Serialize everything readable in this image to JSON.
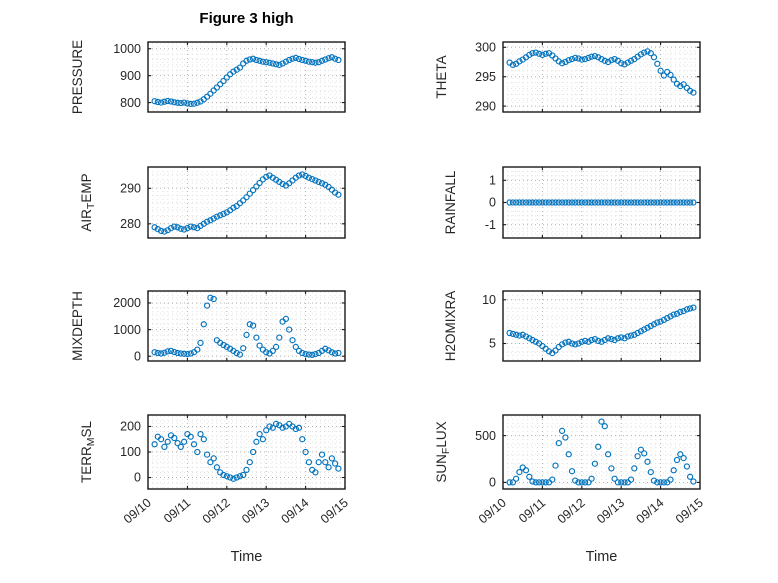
{
  "colors": {
    "marker": "#0072bd",
    "axis": "#1a1a1a",
    "grid": "#b0b0b0",
    "minor_grid": "#dfdfdf",
    "text": "#262626"
  },
  "chart_data": {
    "type": "scatter",
    "title": "Figure 3 high",
    "xlabel": "Time",
    "marker": "open-circle",
    "grid": "dotted major+minor",
    "legend": "none",
    "xlim": [
      0,
      5
    ],
    "x_ticks": [
      0,
      1,
      2,
      3,
      4,
      5
    ],
    "x_tick_labels": [
      "09/10",
      "09/11",
      "09/12",
      "09/13",
      "09/14",
      "09/15"
    ],
    "x": [
      0.167,
      0.25,
      0.333,
      0.417,
      0.5,
      0.583,
      0.667,
      0.75,
      0.833,
      0.917,
      1,
      1.083,
      1.167,
      1.25,
      1.333,
      1.417,
      1.5,
      1.583,
      1.667,
      1.75,
      1.833,
      1.917,
      2,
      2.083,
      2.167,
      2.25,
      2.333,
      2.417,
      2.5,
      2.583,
      2.667,
      2.75,
      2.833,
      2.917,
      3,
      3.083,
      3.167,
      3.25,
      3.333,
      3.417,
      3.5,
      3.583,
      3.667,
      3.75,
      3.833,
      3.917,
      4,
      4.083,
      4.167,
      4.25,
      4.333,
      4.417,
      4.5,
      4.583,
      4.667,
      4.75,
      4.833
    ],
    "panels": [
      {
        "name": "PRESSURE",
        "slug": "pressure",
        "row": 0,
        "col": 0,
        "label": [
          {
            "t": "PRESSURE"
          }
        ],
        "ylim": [
          765,
          1025
        ],
        "yticks": [
          800,
          900,
          1000
        ],
        "values": [
          805,
          802,
          800,
          803,
          806,
          804,
          801,
          799,
          798,
          800,
          797,
          795,
          796,
          799,
          804,
          812,
          822,
          833,
          845,
          856,
          868,
          880,
          893,
          905,
          915,
          922,
          930,
          945,
          955,
          960,
          963,
          958,
          955,
          952,
          950,
          948,
          945,
          942,
          940,
          945,
          952,
          958,
          963,
          966,
          962,
          958,
          955,
          952,
          950,
          948,
          950,
          955,
          960,
          965,
          968,
          963,
          958
        ]
      },
      {
        "name": "THETA",
        "slug": "theta",
        "row": 0,
        "col": 1,
        "label": [
          {
            "t": "THETA"
          }
        ],
        "ylim": [
          289,
          300.9
        ],
        "yticks": [
          290,
          295,
          300
        ],
        "values": [
          297.4,
          297,
          297.2,
          297.6,
          297.9,
          298.3,
          298.7,
          299,
          299.1,
          298.9,
          298.7,
          298.9,
          299,
          298.6,
          298.1,
          297.6,
          297.3,
          297.5,
          297.8,
          298,
          298.2,
          298.1,
          297.9,
          298,
          298.2,
          298.4,
          298.5,
          298.3,
          298,
          297.7,
          297.5,
          297.8,
          298,
          297.7,
          297.3,
          297.1,
          297.4,
          297.7,
          298,
          298.4,
          298.8,
          299.1,
          299.3,
          299,
          298.3,
          297.2,
          296,
          295.2,
          295.8,
          295.3,
          294.5,
          293.8,
          293.4,
          293.7,
          293.1,
          292.6,
          292.3
        ]
      },
      {
        "name": "AIR_TEMP",
        "slug": "air-temp",
        "row": 1,
        "col": 0,
        "label": [
          {
            "t": "AIR"
          },
          {
            "t": "T",
            "sub": true
          },
          {
            "t": "EMP"
          }
        ],
        "ylim": [
          276,
          296
        ],
        "yticks": [
          280,
          290
        ],
        "values": [
          279,
          278.5,
          278,
          277.8,
          278.2,
          278.8,
          279.2,
          279,
          278.6,
          278.4,
          278.8,
          279.2,
          279,
          278.8,
          279.4,
          280,
          280.6,
          281,
          281.5,
          282,
          282.4,
          282.8,
          283.2,
          283.8,
          284.5,
          285,
          285.8,
          286.6,
          287.5,
          288.5,
          289.5,
          290.5,
          291.5,
          292.5,
          293.2,
          293.6,
          293,
          292.4,
          291.8,
          291.2,
          290.8,
          291.4,
          292.2,
          293,
          293.6,
          293.9,
          293.5,
          293,
          292.6,
          292.2,
          291.8,
          291.4,
          291,
          290.4,
          289.6,
          288.8,
          288.2
        ]
      },
      {
        "name": "RAINFALL",
        "slug": "rainfall",
        "row": 1,
        "col": 1,
        "label": [
          {
            "t": "RAINFALL"
          }
        ],
        "ylim": [
          -1.6,
          1.6
        ],
        "yticks": [
          -1,
          0,
          1
        ],
        "values": [
          0,
          0,
          0,
          0,
          0,
          0,
          0,
          0,
          0,
          0,
          0,
          0,
          0,
          0,
          0,
          0,
          0,
          0,
          0,
          0,
          0,
          0,
          0,
          0,
          0,
          0,
          0,
          0,
          0,
          0,
          0,
          0,
          0,
          0,
          0,
          0,
          0,
          0,
          0,
          0,
          0,
          0,
          0,
          0,
          0,
          0,
          0,
          0,
          0,
          0,
          0,
          0,
          0,
          0,
          0,
          0,
          0
        ]
      },
      {
        "name": "MIXDEPTH",
        "slug": "mixdepth",
        "row": 2,
        "col": 0,
        "label": [
          {
            "t": "MIXDEPTH"
          }
        ],
        "ylim": [
          -180,
          2450
        ],
        "yticks": [
          0,
          1000,
          2000
        ],
        "values": [
          150,
          120,
          100,
          130,
          180,
          200,
          160,
          120,
          100,
          90,
          80,
          100,
          150,
          250,
          500,
          1200,
          1900,
          2200,
          2150,
          600,
          500,
          420,
          350,
          280,
          200,
          120,
          60,
          300,
          800,
          1200,
          1150,
          700,
          400,
          250,
          150,
          100,
          200,
          350,
          700,
          1300,
          1400,
          1000,
          600,
          350,
          200,
          120,
          80,
          60,
          50,
          80,
          120,
          200,
          280,
          220,
          150,
          100,
          120
        ]
      },
      {
        "name": "H2OMIXRA",
        "slug": "h2omixra",
        "row": 2,
        "col": 1,
        "label": [
          {
            "t": "H2OMIXRA"
          }
        ],
        "ylim": [
          3,
          11
        ],
        "yticks": [
          5,
          10
        ],
        "values": [
          6.2,
          6.1,
          6,
          5.9,
          6,
          5.8,
          5.6,
          5.4,
          5.2,
          5,
          4.7,
          4.4,
          4.1,
          3.9,
          4.2,
          4.6,
          4.9,
          5.1,
          5.2,
          5,
          4.9,
          5,
          5.2,
          5.3,
          5.2,
          5.4,
          5.5,
          5.3,
          5.2,
          5.4,
          5.6,
          5.5,
          5.4,
          5.6,
          5.7,
          5.6,
          5.8,
          5.9,
          6,
          6.2,
          6.4,
          6.6,
          6.8,
          7,
          7.2,
          7.4,
          7.5,
          7.7,
          7.9,
          8.1,
          8.3,
          8.4,
          8.6,
          8.7,
          8.9,
          9,
          9.1
        ]
      },
      {
        "name": "TERR_MSL",
        "slug": "terr-msl",
        "row": 3,
        "col": 0,
        "label": [
          {
            "t": "TERR"
          },
          {
            "t": "M",
            "sub": true
          },
          {
            "t": "SL"
          }
        ],
        "ylim": [
          -45,
          245
        ],
        "yticks": [
          0,
          100,
          200
        ],
        "values": [
          130,
          160,
          150,
          120,
          140,
          165,
          155,
          135,
          120,
          140,
          170,
          160,
          130,
          100,
          170,
          150,
          90,
          60,
          75,
          40,
          20,
          10,
          5,
          0,
          -5,
          0,
          5,
          10,
          30,
          60,
          100,
          140,
          170,
          150,
          185,
          200,
          195,
          210,
          205,
          195,
          200,
          210,
          200,
          190,
          195,
          150,
          100,
          60,
          30,
          20,
          60,
          90,
          60,
          40,
          75,
          55,
          35
        ]
      },
      {
        "name": "SUN_FLUX",
        "slug": "sun-flux",
        "row": 3,
        "col": 1,
        "label": [
          {
            "t": "SUN"
          },
          {
            "t": "F",
            "sub": true
          },
          {
            "t": "LUX"
          }
        ],
        "ylim": [
          -70,
          720
        ],
        "yticks": [
          0,
          500
        ],
        "values": [
          0,
          0,
          40,
          110,
          160,
          130,
          60,
          10,
          0,
          0,
          0,
          0,
          0,
          30,
          180,
          420,
          550,
          480,
          300,
          120,
          20,
          0,
          0,
          0,
          0,
          40,
          200,
          380,
          650,
          600,
          300,
          150,
          40,
          0,
          0,
          0,
          0,
          30,
          150,
          280,
          350,
          310,
          220,
          110,
          20,
          0,
          0,
          0,
          0,
          30,
          130,
          240,
          300,
          260,
          170,
          60,
          10
        ]
      }
    ]
  }
}
